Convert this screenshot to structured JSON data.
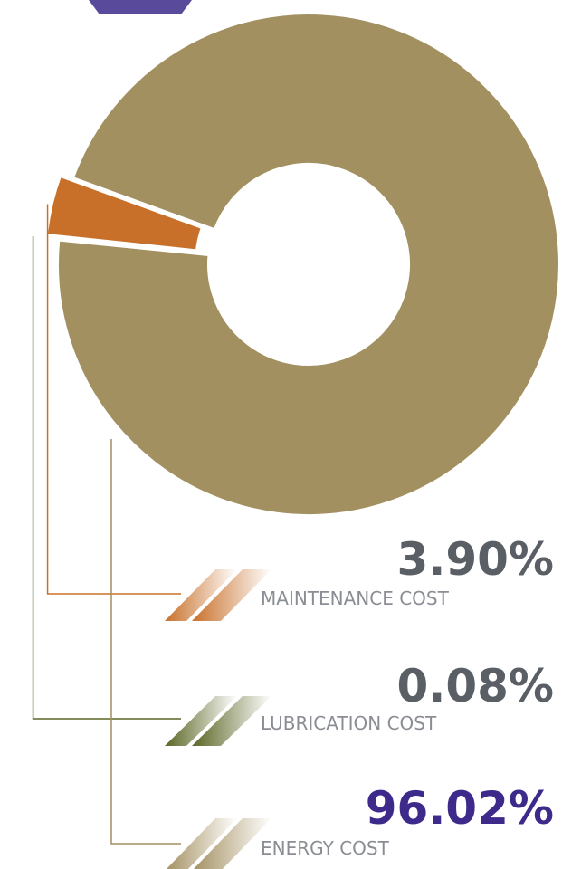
{
  "chart_data": {
    "type": "donut",
    "categories": [
      "MAINTENANCE COST",
      "LUBRICATION COST",
      "ENERGY COST"
    ],
    "values": [
      3.9,
      0.08,
      96.02
    ],
    "value_labels": [
      "3.90%",
      "0.08%",
      "96.02%"
    ],
    "colors": [
      "#c8702a",
      "#5a6624",
      "#a39060"
    ]
  }
}
